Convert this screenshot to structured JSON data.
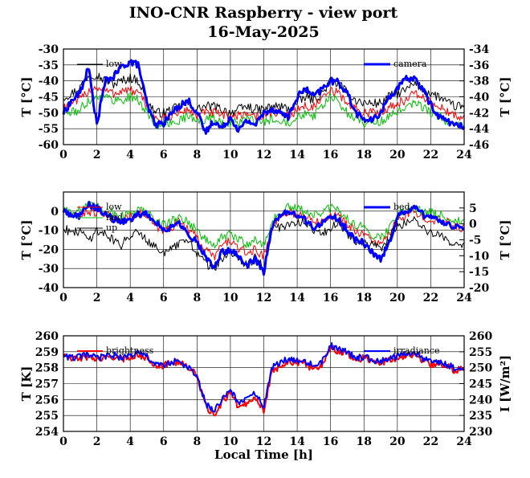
{
  "header": {
    "title": "INO-CNR Raspberry - view port",
    "subtitle": "16-May-2025"
  },
  "colors": {
    "black": "#000000",
    "red": "#ff0000",
    "green": "#00c000",
    "blue": "#0000ff"
  },
  "chart_data": [
    {
      "type": "line",
      "name": "panel-1",
      "xlabel": "",
      "ylabel": "T [°C]",
      "ylabel_right": "T [°C]",
      "xlim": [
        0,
        24
      ],
      "xticks": [
        "0",
        "2",
        "4",
        "6",
        "8",
        "10",
        "12",
        "14",
        "16",
        "18",
        "20",
        "22",
        "24"
      ],
      "ylim": [
        -60,
        -30
      ],
      "yticks": [
        "-60",
        "-55",
        "-50",
        "-45",
        "-40",
        "-35",
        "-30"
      ],
      "ylim_right": [
        -46,
        -34
      ],
      "yticks_right": [
        "-46",
        "-44",
        "-42",
        "-40",
        "-38",
        "-36",
        "-34"
      ],
      "grid": true,
      "legend_left": [
        "low"
      ],
      "legend_right": [
        "camera"
      ],
      "x": [
        0,
        0.5,
        1,
        1.5,
        2,
        2.5,
        3,
        3.5,
        4,
        4.5,
        5,
        5.5,
        6,
        6.5,
        7,
        7.5,
        8,
        8.5,
        9,
        9.5,
        10,
        10.5,
        11,
        11.5,
        12,
        12.5,
        13,
        13.5,
        14,
        14.5,
        15,
        15.5,
        16,
        16.5,
        17,
        17.5,
        18,
        18.5,
        19,
        19.5,
        20,
        20.5,
        21,
        21.5,
        22,
        22.5,
        23,
        23.5,
        24
      ],
      "series": [
        {
          "name": "low",
          "axis": "left",
          "color": "#000000",
          "width": 1,
          "values": [
            -45,
            -44,
            -42,
            -38,
            -38,
            -40,
            -41,
            -40,
            -39,
            -40,
            -46,
            -50,
            -50,
            -49,
            -48,
            -47,
            -49,
            -48,
            -48,
            -49,
            -50,
            -49,
            -48,
            -49,
            -49,
            -48,
            -48,
            -49,
            -47,
            -45,
            -46,
            -44,
            -40,
            -41,
            -44,
            -46,
            -47,
            -47,
            -47,
            -45,
            -44,
            -43,
            -41,
            -42,
            -44,
            -45,
            -47,
            -48,
            -48
          ]
        },
        {
          "name": "",
          "axis": "left",
          "color": "#ff0000",
          "width": 1,
          "values": [
            -48,
            -47,
            -46,
            -43,
            -42,
            -43,
            -44,
            -43,
            -43,
            -44,
            -48,
            -52,
            -52,
            -51,
            -50,
            -49,
            -51,
            -50,
            -50,
            -51,
            -51,
            -51,
            -50,
            -51,
            -51,
            -50,
            -50,
            -51,
            -49,
            -48,
            -48,
            -46,
            -43,
            -44,
            -47,
            -49,
            -50,
            -50,
            -50,
            -48,
            -47,
            -46,
            -44,
            -45,
            -47,
            -48,
            -50,
            -51,
            -51
          ]
        },
        {
          "name": "",
          "axis": "left",
          "color": "#00c000",
          "width": 1,
          "values": [
            -50,
            -50,
            -49,
            -46,
            -45,
            -45,
            -46,
            -46,
            -45,
            -46,
            -50,
            -54,
            -54,
            -53,
            -52,
            -51,
            -53,
            -52,
            -52,
            -53,
            -53,
            -53,
            -52,
            -53,
            -53,
            -52,
            -52,
            -53,
            -51,
            -50,
            -51,
            -48,
            -45,
            -47,
            -50,
            -52,
            -53,
            -53,
            -53,
            -51,
            -50,
            -49,
            -47,
            -48,
            -50,
            -51,
            -53,
            -54,
            -54
          ]
        },
        {
          "name": "camera",
          "axis": "right",
          "color": "#0000ff",
          "width": 3,
          "values": [
            -42,
            -40.5,
            -39.5,
            -36.3,
            -43.5,
            -38,
            -37.5,
            -36.2,
            -35.6,
            -36,
            -41,
            -43.5,
            -43.3,
            -42,
            -41,
            -40.5,
            -42,
            -44.5,
            -43,
            -44,
            -42.5,
            -44.2,
            -43,
            -43.5,
            -42,
            -41.5,
            -42,
            -42.5,
            -40,
            -39,
            -40,
            -39,
            -38,
            -38.2,
            -39.5,
            -42,
            -42.8,
            -43,
            -42,
            -40,
            -39,
            -37.8,
            -37.6,
            -39,
            -41,
            -42.5,
            -43,
            -43.6,
            -43.8
          ]
        }
      ]
    },
    {
      "type": "line",
      "name": "panel-2",
      "xlabel": "",
      "ylabel": "T [°C]",
      "ylabel_right": "T [°C]",
      "xlim": [
        0,
        24
      ],
      "xticks": [
        "0",
        "2",
        "4",
        "6",
        "8",
        "10",
        "12",
        "14",
        "16",
        "18",
        "20",
        "22",
        "24"
      ],
      "ylim": [
        -40,
        10
      ],
      "yticks": [
        "-40",
        "-30",
        "-20",
        "-10",
        "0"
      ],
      "ylim_right": [
        -20,
        10
      ],
      "yticks_right": [
        "-20",
        "-15",
        "-10",
        "-5",
        "0",
        "5"
      ],
      "grid": true,
      "legend_left": [
        "low",
        "mid",
        "up"
      ],
      "legend_right": [
        "bed"
      ],
      "x": [
        0,
        0.5,
        1,
        1.5,
        2,
        2.5,
        3,
        3.5,
        4,
        4.5,
        5,
        5.5,
        6,
        6.5,
        7,
        7.5,
        8,
        8.5,
        9,
        9.5,
        10,
        10.5,
        11,
        11.5,
        12,
        12.5,
        13,
        13.5,
        14,
        14.5,
        15,
        15.5,
        16,
        16.5,
        17,
        17.5,
        18,
        18.5,
        19,
        19.5,
        20,
        20.5,
        21,
        21.5,
        22,
        22.5,
        23,
        23.5,
        24
      ],
      "series": [
        {
          "name": "low",
          "axis": "left",
          "color": "#ff0000",
          "width": 1,
          "values": [
            0,
            -3,
            -2,
            0,
            -1,
            -2,
            -4,
            -6,
            -2,
            -1,
            -3,
            -8,
            -10,
            -8,
            -5,
            -9,
            -14,
            -20,
            -24,
            -18,
            -15,
            -20,
            -22,
            -20,
            -24,
            -8,
            -3,
            0,
            -2,
            -3,
            -5,
            -4,
            -2,
            -3,
            -7,
            -10,
            -12,
            -15,
            -18,
            -12,
            -5,
            -2,
            -1,
            -3,
            -4,
            -5,
            -6,
            -8,
            -9
          ]
        },
        {
          "name": "mid",
          "axis": "left",
          "color": "#00c000",
          "width": 1,
          "values": [
            2,
            0,
            1,
            3,
            2,
            1,
            -1,
            -3,
            0,
            1,
            -1,
            -5,
            -7,
            -5,
            -3,
            -6,
            -10,
            -15,
            -18,
            -14,
            -12,
            -15,
            -17,
            -15,
            -18,
            -5,
            -1,
            2,
            1,
            0,
            -2,
            -1,
            2,
            0,
            -4,
            -7,
            -9,
            -12,
            -14,
            -9,
            -2,
            1,
            2,
            0,
            -1,
            -2,
            -3,
            -5,
            -6
          ]
        },
        {
          "name": "up",
          "axis": "left",
          "color": "#000000",
          "width": 1,
          "values": [
            -8,
            -12,
            -10,
            -15,
            -10,
            -12,
            -15,
            -18,
            -12,
            -10,
            -15,
            -18,
            -22,
            -20,
            -17,
            -15,
            -22,
            -27,
            -30,
            -25,
            -22,
            -25,
            -28,
            -24,
            -30,
            -10,
            -8,
            -7,
            -6,
            -5,
            -10,
            -12,
            -10,
            -5,
            -12,
            -15,
            -17,
            -18,
            -20,
            -14,
            -8,
            -6,
            -4,
            -8,
            -12,
            -13,
            -15,
            -17,
            -18
          ]
        },
        {
          "name": "bed",
          "axis": "right",
          "color": "#0000ff",
          "width": 3,
          "values": [
            4,
            3,
            2.5,
            6,
            5,
            3,
            1.5,
            0.5,
            1.5,
            3,
            3,
            1,
            -2,
            -1,
            0,
            -3,
            -6,
            -10,
            -14,
            -9,
            -8,
            -10,
            -13,
            -11,
            -15,
            -1,
            3,
            4,
            2.5,
            1,
            -1,
            0,
            3,
            1,
            -2,
            -5,
            -6,
            -9,
            -11,
            -6,
            2,
            4,
            5,
            3,
            2,
            1,
            0,
            -1,
            -2
          ]
        }
      ]
    },
    {
      "type": "line",
      "name": "panel-3",
      "xlabel": "Local Time [h]",
      "ylabel": "T [K]",
      "ylabel_right": "I [W/m²]",
      "xlim": [
        0,
        24
      ],
      "xticks": [
        "0",
        "2",
        "4",
        "6",
        "8",
        "10",
        "12",
        "14",
        "16",
        "18",
        "20",
        "22",
        "24"
      ],
      "ylim": [
        254,
        260
      ],
      "yticks": [
        "254",
        "255",
        "256",
        "257",
        "258",
        "259",
        "260"
      ],
      "ylim_right": [
        230,
        260
      ],
      "yticks_right": [
        "230",
        "235",
        "240",
        "245",
        "250",
        "255",
        "260"
      ],
      "grid": true,
      "legend_left": [
        "brightness"
      ],
      "legend_right": [
        "irradiance"
      ],
      "x": [
        0,
        0.5,
        1,
        1.5,
        2,
        2.5,
        3,
        3.5,
        4,
        4.5,
        5,
        5.5,
        6,
        6.5,
        7,
        7.5,
        8,
        8.5,
        9,
        9.5,
        10,
        10.5,
        11,
        11.5,
        12,
        12.5,
        13,
        13.5,
        14,
        14.5,
        15,
        15.5,
        16,
        16.5,
        17,
        17.5,
        18,
        18.5,
        19,
        19.5,
        20,
        20.5,
        21,
        21.5,
        22,
        22.5,
        23,
        23.5,
        24
      ],
      "series": [
        {
          "name": "brightness",
          "axis": "left",
          "color": "#ff0000",
          "width": 2,
          "values": [
            258.8,
            258.5,
            258.6,
            258.7,
            258.5,
            258.6,
            258.7,
            258.5,
            258.7,
            258.8,
            258.6,
            258.2,
            258.1,
            258.4,
            258.3,
            258.0,
            257.5,
            255.6,
            255.0,
            255.8,
            256.5,
            255.5,
            255.8,
            256.2,
            255.3,
            257.8,
            258.1,
            258.4,
            258.3,
            258.2,
            257.9,
            258.2,
            259.3,
            259.0,
            258.9,
            258.5,
            258.6,
            258.4,
            258.3,
            258.5,
            258.6,
            258.8,
            258.8,
            258.5,
            258.2,
            258.3,
            258.1,
            257.8,
            258.0
          ]
        },
        {
          "name": "irradiance",
          "axis": "right",
          "color": "#0000ff",
          "width": 2,
          "values": [
            254,
            253,
            253.5,
            254,
            253,
            253.5,
            254,
            253,
            254,
            254.5,
            253.5,
            251,
            250.5,
            252,
            251.5,
            250,
            247,
            239,
            236,
            240,
            243,
            239,
            240,
            242,
            238,
            250,
            251.5,
            253,
            252.5,
            252,
            250.5,
            252,
            257,
            255.5,
            255,
            253,
            253.5,
            252.5,
            252,
            253,
            253.5,
            254.5,
            254.5,
            253,
            251.5,
            252,
            251,
            249.5,
            250.5
          ]
        }
      ]
    }
  ]
}
